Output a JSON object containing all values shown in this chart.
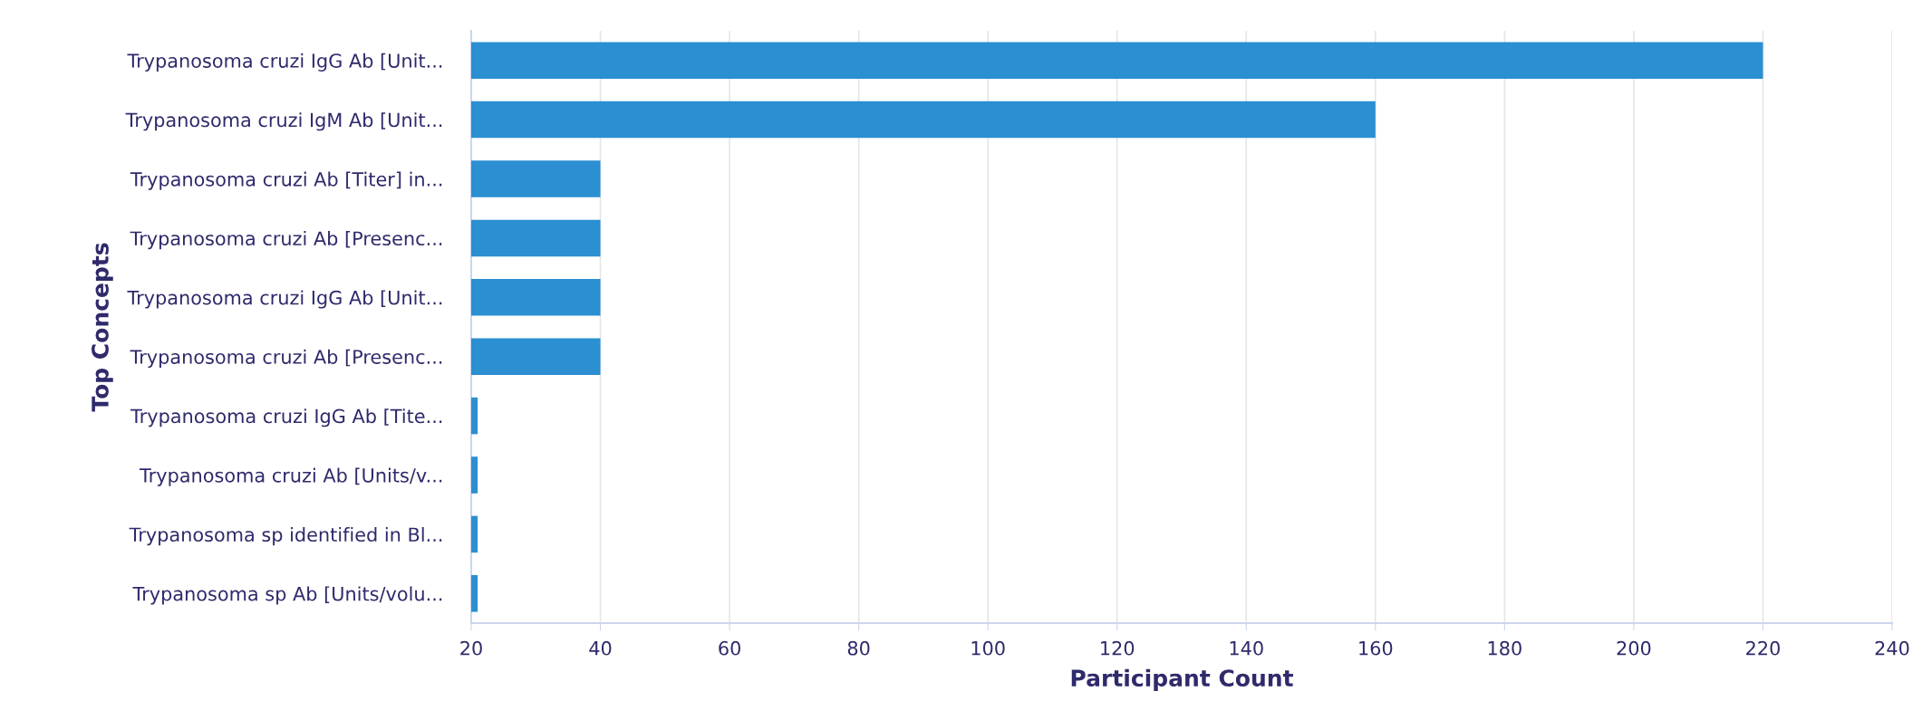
{
  "chart_data": {
    "type": "bar",
    "orientation": "horizontal",
    "xlabel": "Participant Count",
    "ylabel": "Top Concepts",
    "categories": [
      "Trypanosoma cruzi IgG Ab [Unit...",
      "Trypanosoma cruzi IgM Ab [Unit...",
      "Trypanosoma cruzi Ab [Titer] in...",
      "Trypanosoma cruzi Ab [Presenc...",
      "Trypanosoma cruzi IgG Ab [Unit...",
      "Trypanosoma cruzi Ab [Presenc...",
      "Trypanosoma cruzi IgG Ab [Tite...",
      "Trypanosoma cruzi Ab [Units/v...",
      "Trypanosoma sp identified in Bl...",
      "Trypanosoma sp Ab [Units/volu..."
    ],
    "values": [
      220,
      160,
      40,
      40,
      40,
      40,
      21,
      21,
      21,
      21
    ],
    "color": "#2b8fd2",
    "xlim": [
      20,
      240
    ],
    "xticks": [
      20,
      40,
      60,
      80,
      100,
      120,
      140,
      160,
      180,
      200,
      220,
      240
    ],
    "grid": "x",
    "legend": false
  }
}
